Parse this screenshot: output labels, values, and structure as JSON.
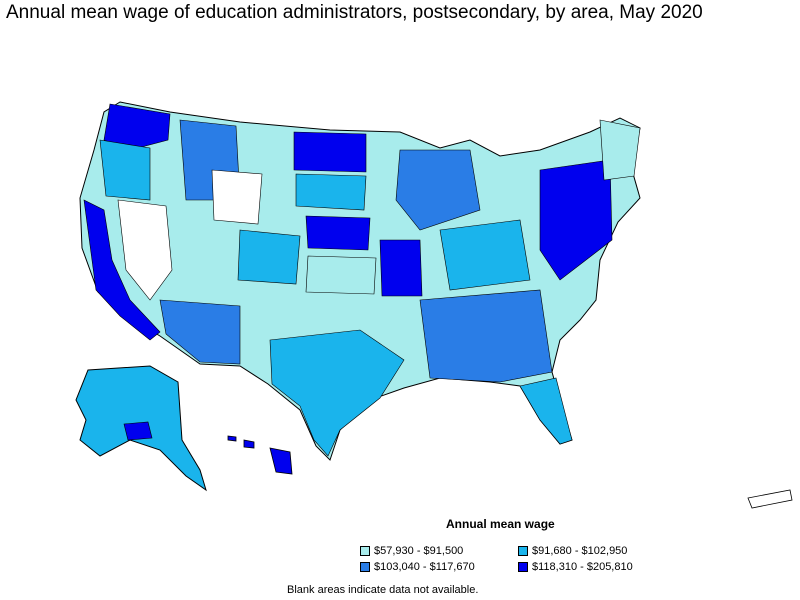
{
  "title": "Annual mean wage of education administrators, postsecondary, by area, May 2020",
  "legend": {
    "title": "Annual mean wage",
    "items": [
      {
        "label": "$57,930 - $91,500",
        "color": "#a8ecec"
      },
      {
        "label": "$91,680 - $102,950",
        "color": "#1ab4ec"
      },
      {
        "label": "$103,040 - $117,670",
        "color": "#2a7de6"
      },
      {
        "label": "$118,310 - $205,810",
        "color": "#0000ee"
      }
    ]
  },
  "note": "Blank areas indicate data not available."
}
